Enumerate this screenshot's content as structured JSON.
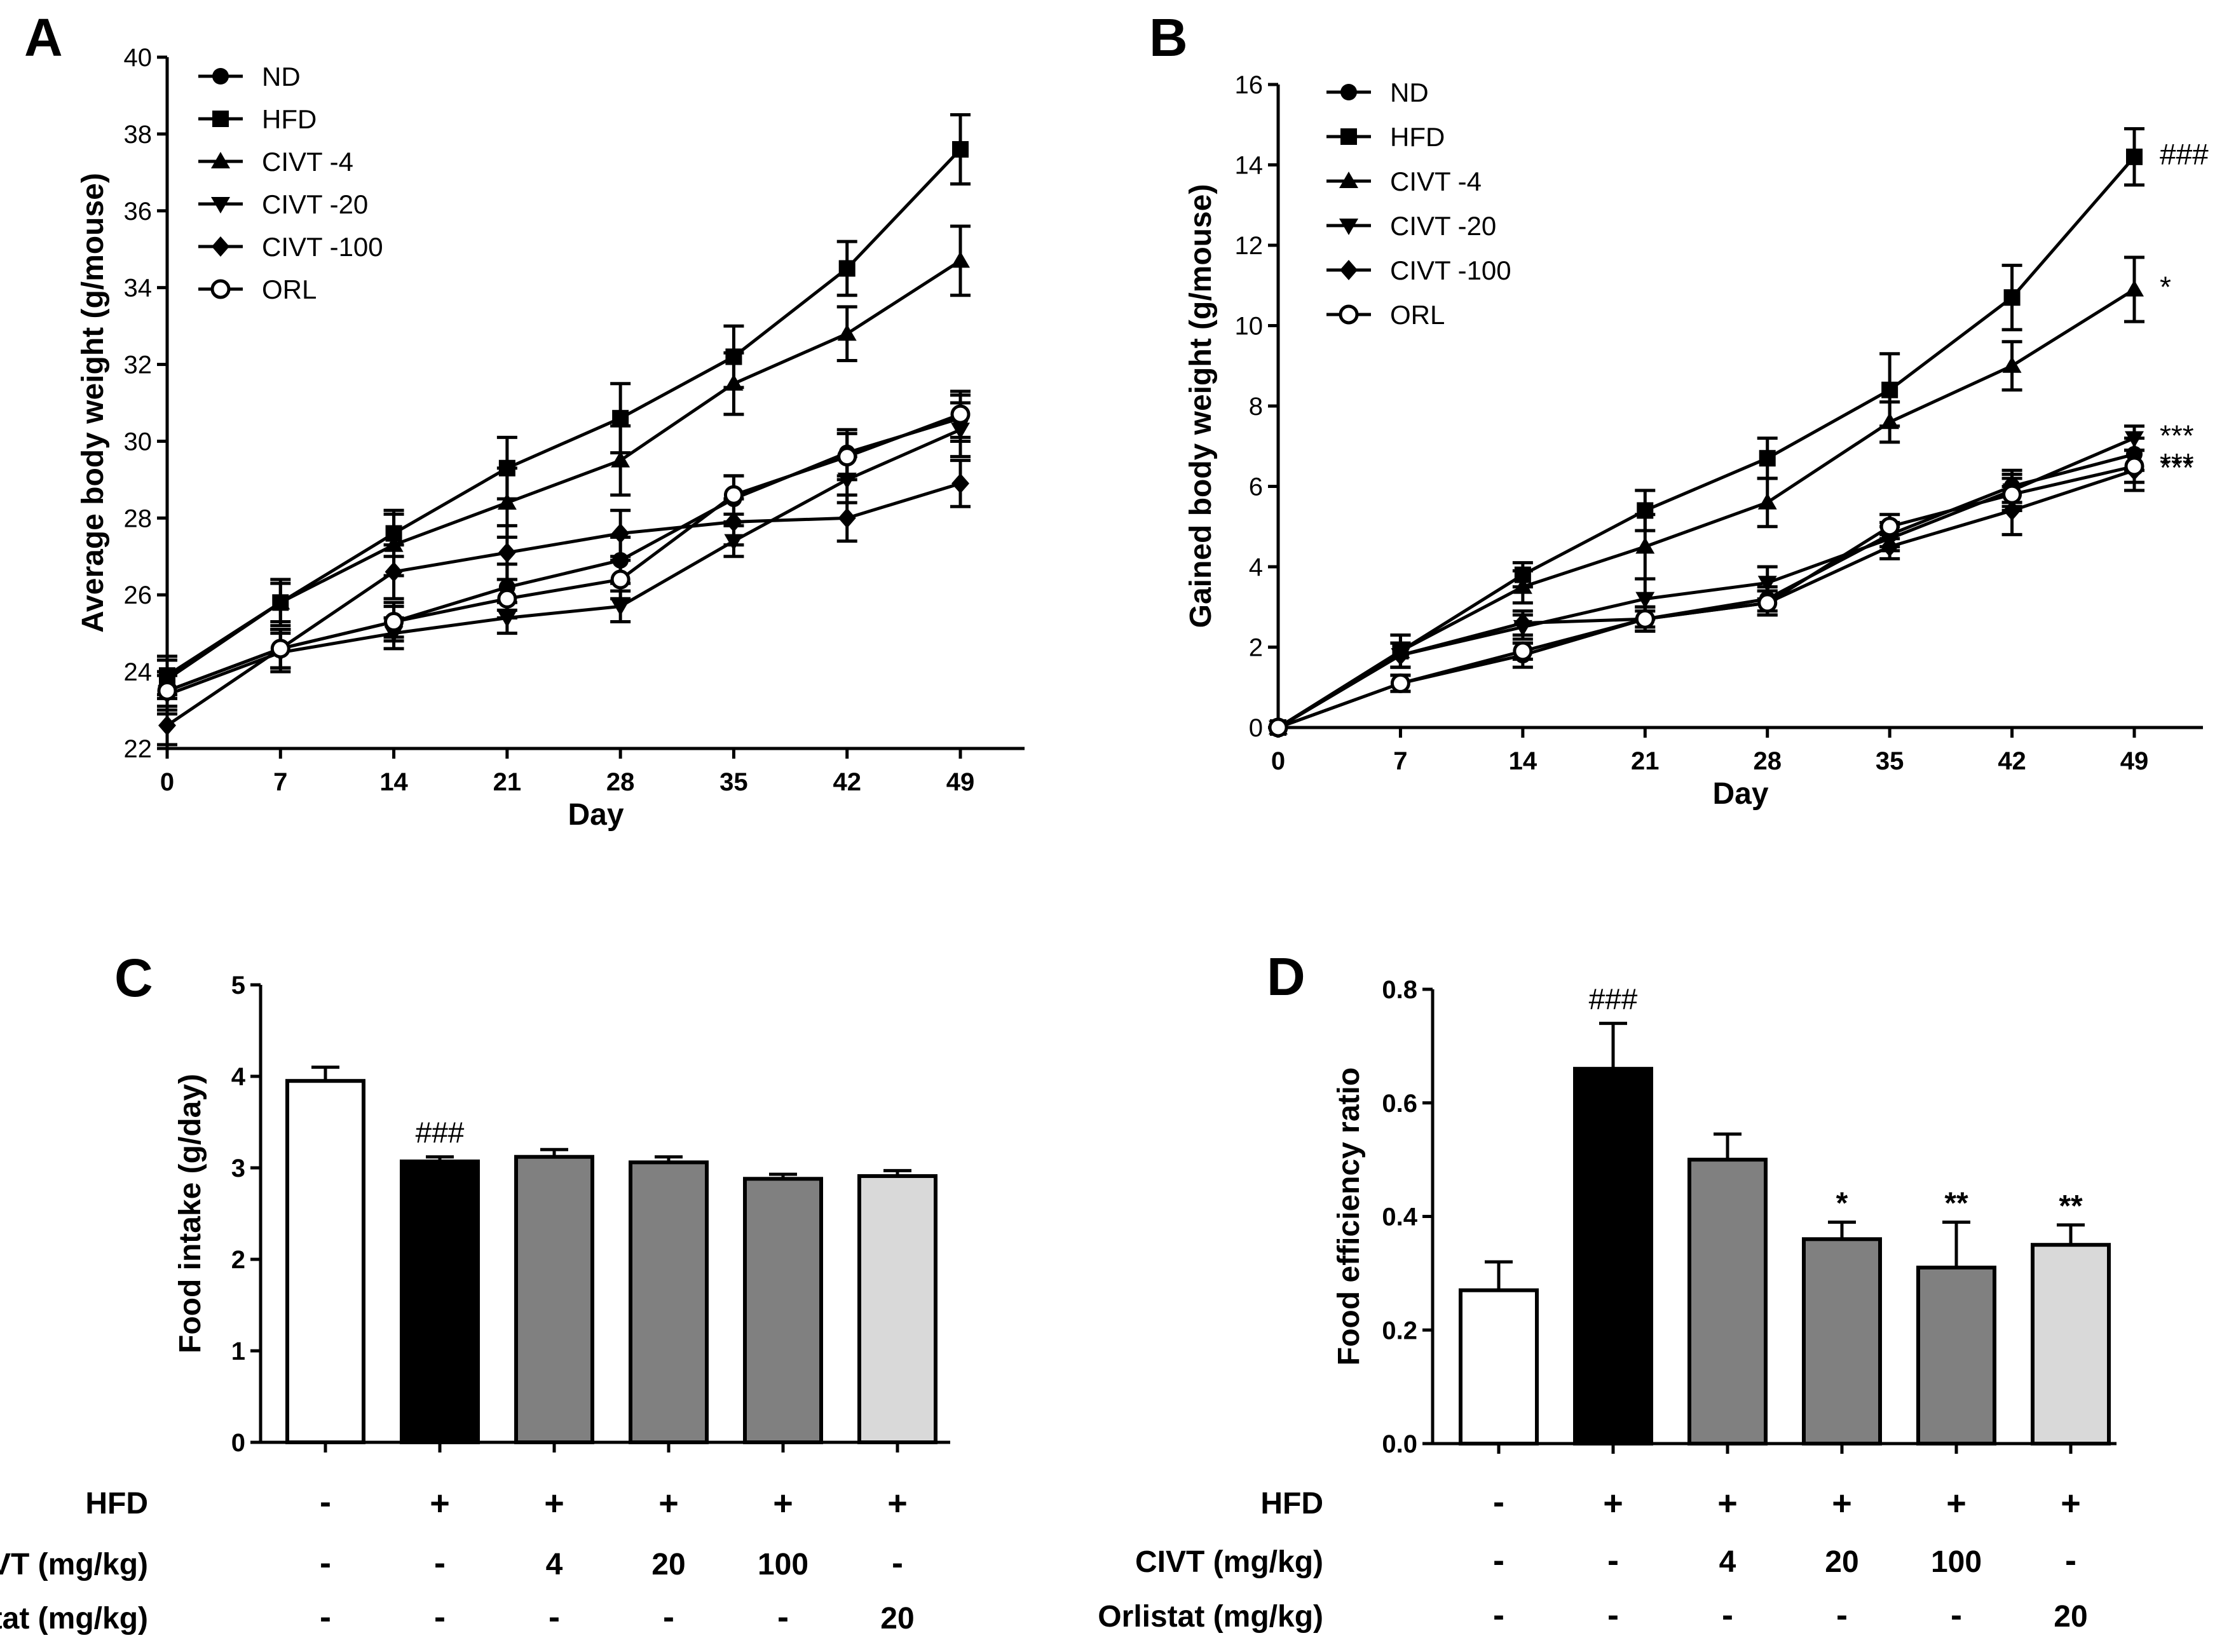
{
  "chart_data": [
    {
      "id": "A",
      "panel_label": "A",
      "type": "line",
      "xlabel": "Day",
      "ylabel": "Average body weight (g/mouse)",
      "x": [
        0,
        7,
        14,
        21,
        28,
        35,
        42,
        49
      ],
      "xticks": [
        "0",
        "7",
        "14",
        "21",
        "28",
        "35",
        "42",
        "49"
      ],
      "ylim": [
        22,
        40
      ],
      "yticks": [
        22,
        24,
        26,
        28,
        30,
        32,
        34,
        36,
        38,
        40
      ],
      "legend": [
        "ND",
        "HFD",
        "CIVT -4",
        "CIVT -20",
        "CIVT -100",
        "ORL"
      ],
      "series": [
        {
          "name": "ND",
          "marker": "circle",
          "values": [
            23.5,
            24.6,
            25.3,
            26.2,
            26.9,
            28.5,
            29.7,
            30.6
          ],
          "errors": [
            0.5,
            0.5,
            0.5,
            0.6,
            0.6,
            0.6,
            0.6,
            0.6
          ]
        },
        {
          "name": "HFD",
          "marker": "square",
          "values": [
            23.9,
            25.8,
            27.6,
            29.3,
            30.6,
            32.2,
            34.5,
            37.6
          ],
          "errors": [
            0.5,
            0.6,
            0.6,
            0.8,
            0.9,
            0.8,
            0.7,
            0.9
          ]
        },
        {
          "name": "CIVT -4",
          "marker": "triangle-up",
          "values": [
            23.8,
            25.8,
            27.3,
            28.4,
            29.5,
            31.5,
            32.8,
            34.7
          ],
          "errors": [
            0.5,
            0.5,
            0.8,
            0.9,
            0.9,
            0.8,
            0.7,
            0.9
          ]
        },
        {
          "name": "CIVT -20",
          "marker": "triangle-down",
          "values": [
            23.4,
            24.5,
            25.0,
            25.4,
            25.7,
            27.4,
            29.0,
            30.3
          ],
          "errors": [
            0.5,
            0.5,
            0.4,
            0.4,
            0.4,
            0.4,
            0.6,
            0.7
          ]
        },
        {
          "name": "CIVT -100",
          "marker": "diamond",
          "values": [
            22.6,
            24.6,
            26.6,
            27.1,
            27.6,
            27.9,
            28.0,
            28.9
          ],
          "errors": [
            0.5,
            0.5,
            0.7,
            0.7,
            0.6,
            0.6,
            0.6,
            0.6
          ]
        },
        {
          "name": "ORL",
          "marker": "circle-open",
          "values": [
            23.5,
            24.6,
            25.3,
            25.9,
            26.4,
            28.6,
            29.6,
            30.7
          ],
          "errors": [
            0.5,
            0.5,
            0.4,
            0.5,
            0.5,
            0.5,
            0.6,
            0.6
          ]
        }
      ]
    },
    {
      "id": "B",
      "panel_label": "B",
      "type": "line",
      "xlabel": "Day",
      "ylabel": "Gained body weight (g/mouse)",
      "x": [
        0,
        7,
        14,
        21,
        28,
        35,
        42,
        49
      ],
      "xticks": [
        "0",
        "7",
        "14",
        "21",
        "28",
        "35",
        "42",
        "49"
      ],
      "ylim": [
        0,
        16
      ],
      "yticks": [
        0,
        2,
        4,
        6,
        8,
        10,
        12,
        14,
        16
      ],
      "legend": [
        "ND",
        "HFD",
        "CIVT -4",
        "CIVT -20",
        "CIVT -100",
        "ORL"
      ],
      "series": [
        {
          "name": "ND",
          "marker": "circle",
          "values": [
            0,
            1.1,
            1.8,
            2.7,
            3.2,
            4.8,
            6.0,
            6.8
          ],
          "errors": [
            0,
            0.2,
            0.3,
            0.3,
            0.3,
            0.3,
            0.4,
            0.4
          ]
        },
        {
          "name": "HFD",
          "marker": "square",
          "values": [
            0,
            1.9,
            3.8,
            5.4,
            6.7,
            8.4,
            10.7,
            14.2
          ],
          "errors": [
            0,
            0.4,
            0.3,
            0.5,
            0.5,
            0.9,
            0.8,
            0.7
          ]
        },
        {
          "name": "CIVT -4",
          "marker": "triangle-up",
          "values": [
            0,
            1.9,
            3.5,
            4.5,
            5.6,
            7.6,
            9.0,
            10.9
          ],
          "errors": [
            0,
            0.4,
            0.4,
            0.8,
            0.6,
            0.5,
            0.6,
            0.8
          ]
        },
        {
          "name": "CIVT -20",
          "marker": "triangle-down",
          "values": [
            0,
            1.8,
            2.5,
            3.2,
            3.6,
            4.7,
            5.9,
            7.2
          ],
          "errors": [
            0,
            0.3,
            0.3,
            0.5,
            0.4,
            0.3,
            0.4,
            0.3
          ]
        },
        {
          "name": "CIVT -100",
          "marker": "diamond",
          "values": [
            0,
            1.8,
            2.6,
            2.7,
            3.1,
            4.5,
            5.4,
            6.4
          ],
          "errors": [
            0,
            0.3,
            0.3,
            0.3,
            0.3,
            0.3,
            0.6,
            0.5
          ]
        },
        {
          "name": "ORL",
          "marker": "circle-open",
          "values": [
            0,
            1.1,
            1.9,
            2.7,
            3.1,
            5.0,
            5.8,
            6.5
          ],
          "errors": [
            0,
            0.2,
            0.2,
            0.2,
            0.3,
            0.3,
            0.4,
            0.4
          ]
        }
      ],
      "annotations": [
        {
          "series": "HFD",
          "text": "###"
        },
        {
          "series": "CIVT -4",
          "text": "*"
        },
        {
          "series": "CIVT -20",
          "text": "***"
        },
        {
          "series": "ORL",
          "text": "***"
        },
        {
          "series": "CIVT -100",
          "text": "***"
        }
      ]
    },
    {
      "id": "C",
      "panel_label": "C",
      "type": "bar",
      "ylabel": "Food intake (g/day)",
      "ylim": [
        0,
        5
      ],
      "yticks": [
        0,
        1,
        2,
        3,
        4,
        5
      ],
      "values": [
        3.95,
        3.07,
        3.12,
        3.06,
        2.88,
        2.91
      ],
      "errors": [
        0.15,
        0.05,
        0.08,
        0.06,
        0.05,
        0.06
      ],
      "annotations": [
        "",
        "###",
        "",
        "",
        "",
        ""
      ],
      "condition_labels": [
        "HFD",
        "CIVT (mg/kg)",
        "Orlistat (mg/kg)"
      ],
      "conditions": [
        [
          "-",
          "+",
          "+",
          "+",
          "+",
          "+"
        ],
        [
          "-",
          "-",
          "4",
          "20",
          "100",
          "-"
        ],
        [
          "-",
          "-",
          "-",
          "-",
          "-",
          "20"
        ]
      ]
    },
    {
      "id": "D",
      "panel_label": "D",
      "type": "bar",
      "ylabel": "Food efficiency ratio",
      "ylim": [
        0,
        0.8
      ],
      "yticks": [
        0.0,
        0.2,
        0.4,
        0.6,
        0.8
      ],
      "ytick_labels": [
        "0.0",
        "0.2",
        "0.4",
        "0.6",
        "0.8"
      ],
      "values": [
        0.27,
        0.66,
        0.5,
        0.36,
        0.31,
        0.35
      ],
      "errors": [
        0.05,
        0.08,
        0.045,
        0.03,
        0.08,
        0.035
      ],
      "annotations": [
        "",
        "###",
        "",
        "*",
        "**",
        "**"
      ],
      "condition_labels": [
        "HFD",
        "CIVT (mg/kg)",
        "Orlistat (mg/kg)"
      ],
      "conditions": [
        [
          "-",
          "+",
          "+",
          "+",
          "+",
          "+"
        ],
        [
          "-",
          "-",
          "4",
          "20",
          "100",
          "-"
        ],
        [
          "-",
          "-",
          "-",
          "-",
          "-",
          "20"
        ]
      ]
    }
  ],
  "colors": {
    "axis": "#000000",
    "bar_fills": [
      "#ffffff",
      "#000000",
      "#808080",
      "#808080",
      "#808080",
      "#d9d9d9"
    ],
    "bar_stroke": "#000000"
  }
}
